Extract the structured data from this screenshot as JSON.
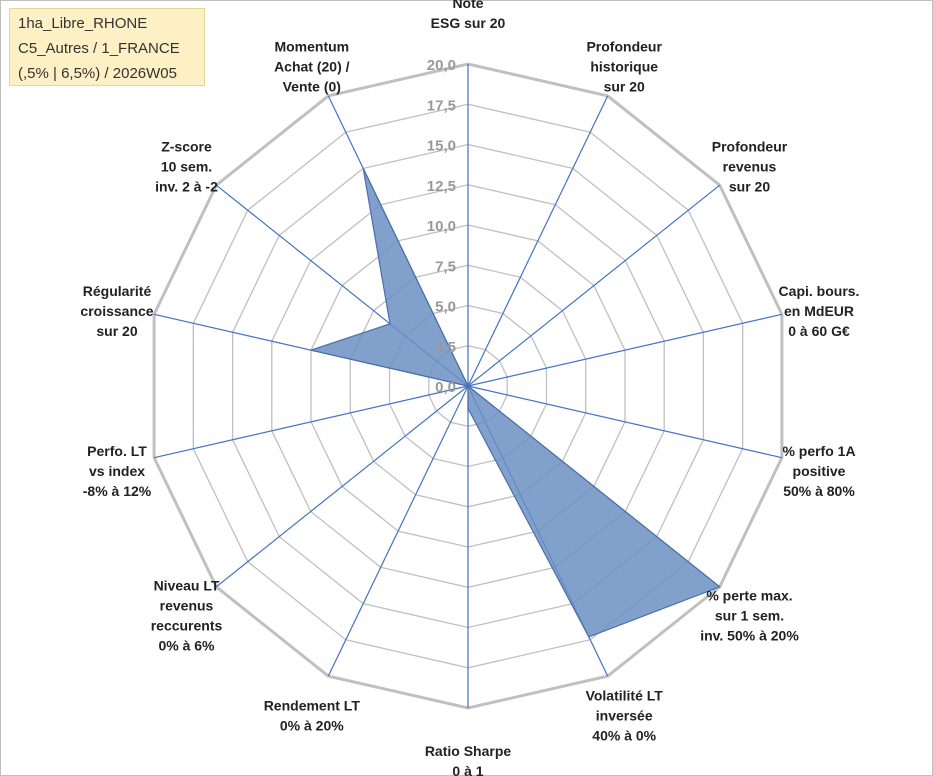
{
  "title_box": {
    "line1": "1ha_Libre_RHONE",
    "line2": "C5_Autres / 1_FRANCE",
    "line3": "(,5% | 6,5%) / 2026W05"
  },
  "chart_data": {
    "type": "radar",
    "rmax": 20,
    "rings": 8,
    "ticks": [
      "0,0",
      "2,5",
      "5,0",
      "7,5",
      "10,0",
      "12,5",
      "15,0",
      "17,5",
      "20,0"
    ],
    "axes": [
      [
        "Note",
        "ESG sur 20"
      ],
      [
        "Profondeur",
        "historique",
        "sur 20"
      ],
      [
        "Profondeur",
        "revenus",
        "sur 20"
      ],
      [
        "Capi. bours.",
        "en MdEUR",
        "0 à 60 G€"
      ],
      [
        "% perfo 1A",
        "positive",
        "50% à 80%"
      ],
      [
        "% perte max.",
        "sur 1 sem.",
        "inv. 50% à 20%"
      ],
      [
        "Volatilité LT",
        "inversée",
        "40% à 0%"
      ],
      [
        "Ratio Sharpe",
        "0 à 1"
      ],
      [
        "Rendement LT",
        "0% à 20%"
      ],
      [
        "Niveau LT",
        "revenus",
        "reccurents",
        "0% à 6%"
      ],
      [
        "Perfo. LT",
        "vs index",
        "-8% à 12%"
      ],
      [
        "Régularité",
        "croissance",
        "sur 20"
      ],
      [
        "Z-score",
        "10 sem.",
        "inv. 2 à -2"
      ],
      [
        "Momentum",
        "Achat (20) /",
        "Vente (0)"
      ]
    ],
    "values": [
      0,
      0,
      0,
      0,
      0,
      20,
      17.3,
      1.4,
      0,
      0,
      0,
      10,
      6.2,
      15
    ],
    "fill_color": "#6b8fc2",
    "stroke_color": "#4a6fa8",
    "grid_color": "#c0c0c0",
    "spoke_color": "#4472c4"
  }
}
